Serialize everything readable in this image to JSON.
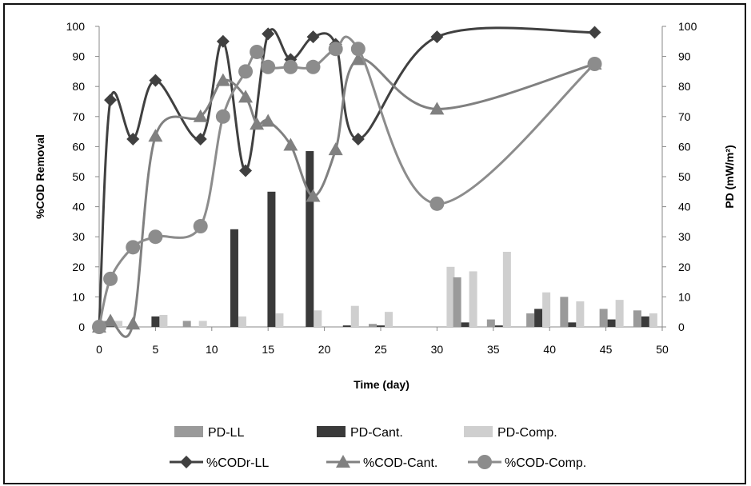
{
  "chart_data": {
    "type": "bar+line",
    "title": "",
    "xlabel": "Time (day)",
    "ylabel_left": "%COD Removal",
    "ylabel_right": "PD (mW/m²)",
    "xlim": [
      0,
      50
    ],
    "ylim_left": [
      0,
      100
    ],
    "ylim_right": [
      0,
      100
    ],
    "x_ticks": [
      0,
      5,
      10,
      15,
      20,
      25,
      30,
      35,
      40,
      45,
      50
    ],
    "y_ticks": [
      0,
      10,
      20,
      30,
      40,
      50,
      60,
      70,
      80,
      90,
      100
    ],
    "grid": false,
    "legend_position": "bottom",
    "bar_groups": [
      {
        "x": 1,
        "PD-LL": 2,
        "PD-Cant.": 2,
        "PD-Comp.": 2
      },
      {
        "x": 5,
        "PD-LL": 0,
        "PD-Cant.": 3.5,
        "PD-Comp.": 4
      },
      {
        "x": 8.5,
        "PD-LL": 2,
        "PD-Cant.": 0,
        "PD-Comp.": 2
      },
      {
        "x": 12,
        "PD-LL": 0,
        "PD-Cant.": 32.5,
        "PD-Comp.": 3.5
      },
      {
        "x": 15.3,
        "PD-LL": 0,
        "PD-Cant.": 45,
        "PD-Comp.": 4.5
      },
      {
        "x": 18.7,
        "PD-LL": 0,
        "PD-Cant.": 58.5,
        "PD-Comp.": 5.5
      },
      {
        "x": 22,
        "PD-LL": 0,
        "PD-Cant.": 0.5,
        "PD-Comp.": 7
      },
      {
        "x": 25,
        "PD-LL": 1,
        "PD-Cant.": 0.5,
        "PD-Comp.": 5
      },
      {
        "x": 30.5,
        "PD-LL": 0,
        "PD-Cant.": 0,
        "PD-Comp.": 20
      },
      {
        "x": 32.5,
        "PD-LL": 16.5,
        "PD-Cant.": 1.5,
        "PD-Comp.": 18.5
      },
      {
        "x": 35.5,
        "PD-LL": 2.5,
        "PD-Cant.": 0.5,
        "PD-Comp.": 25
      },
      {
        "x": 39,
        "PD-LL": 4.5,
        "PD-Cant.": 6,
        "PD-Comp.": 11.5
      },
      {
        "x": 42,
        "PD-LL": 10,
        "PD-Cant.": 1.5,
        "PD-Comp.": 8.5
      },
      {
        "x": 45.5,
        "PD-LL": 6,
        "PD-Cant.": 2.5,
        "PD-Comp.": 9
      },
      {
        "x": 48.5,
        "PD-LL": 5.5,
        "PD-Cant.": 3.5,
        "PD-Comp.": 4.5
      }
    ],
    "bar_series": [
      {
        "name": "PD-LL",
        "color": "#9a9a9a"
      },
      {
        "name": "PD-Cant.",
        "color": "#3a3a3a"
      },
      {
        "name": "PD-Comp.",
        "color": "#cfcfcf"
      }
    ],
    "line_series": [
      {
        "name": "%CODr-LL",
        "color": "#404040",
        "marker": "diamond",
        "x": [
          0,
          1,
          3,
          5,
          9,
          11,
          13,
          15,
          17,
          19,
          21,
          23,
          30,
          44
        ],
        "y": [
          0,
          75.5,
          62.5,
          82,
          62.5,
          95,
          52,
          97.5,
          89,
          96.5,
          94,
          62.5,
          96.5,
          98
        ]
      },
      {
        "name": "%COD-Cant.",
        "color": "#808080",
        "marker": "triangle",
        "x": [
          0,
          1,
          3,
          5,
          9,
          11,
          13,
          14,
          15,
          17,
          19,
          21,
          23,
          30,
          44
        ],
        "y": [
          0,
          2,
          1,
          63.5,
          70,
          82,
          76.5,
          67.5,
          68.5,
          60.5,
          43.5,
          59,
          89,
          72.5,
          87.5
        ]
      },
      {
        "name": "%COD-Comp.",
        "color": "#8c8c8c",
        "marker": "circle",
        "x": [
          0,
          1,
          3,
          5,
          9,
          11,
          13,
          14,
          15,
          17,
          19,
          21,
          23,
          30,
          44
        ],
        "y": [
          0,
          16,
          26.5,
          30,
          33.5,
          70,
          85,
          91.5,
          86.5,
          86.5,
          86.5,
          92.5,
          92.5,
          41,
          87.5
        ]
      }
    ]
  }
}
